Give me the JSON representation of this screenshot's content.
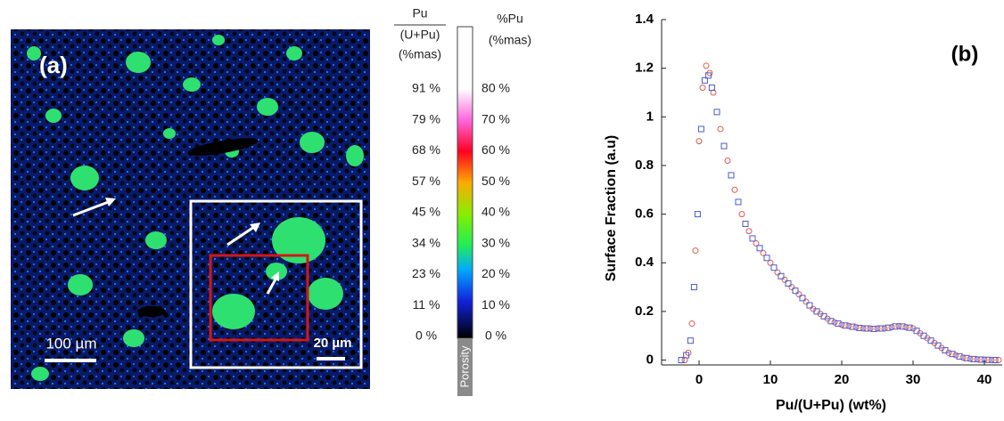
{
  "panel_a": {
    "label": "(a)",
    "scale_main": "100 µm",
    "scale_inset": "20 µm"
  },
  "colorbar": {
    "left_title": [
      "Pu",
      "(U+Pu)",
      "(%mas)"
    ],
    "right_title": [
      "%Pu",
      "(%mas)"
    ],
    "left_labels": [
      "91 %",
      "79 %",
      "68 %",
      "57 %",
      "45 %",
      "34 %",
      "23 %",
      "11 %",
      "0 %"
    ],
    "right_labels": [
      "80 %",
      "70 %",
      "60 %",
      "50 %",
      "40 %",
      "30 %",
      "20 %",
      "10 %",
      "0 %"
    ],
    "porosity": "Porosity"
  },
  "chart_data": {
    "type": "scatter",
    "label": "(b)",
    "xlabel": "Pu/(U+Pu) (wt%)",
    "ylabel": "Surface Fraction (a.u)",
    "xlim": [
      -5.25,
      42.5
    ],
    "ylim": [
      -0.02,
      1.4
    ],
    "xticks": [
      0,
      10,
      20,
      30,
      40
    ],
    "yticks": [
      0,
      0.2,
      0.4,
      0.6,
      0.8,
      1,
      1.2,
      1.4
    ],
    "series": [
      {
        "color": "#e05a4a",
        "marker": "circle",
        "x": [
          -2,
          -1.5,
          -1,
          -0.5,
          0,
          0.5,
          1,
          1.5,
          2,
          3,
          4,
          5,
          6,
          7,
          8,
          9,
          10,
          11,
          12,
          13,
          14,
          15,
          16,
          17,
          18,
          19,
          20,
          21,
          22,
          23,
          24,
          25,
          26,
          27,
          28,
          29,
          30,
          31,
          32,
          33,
          34,
          35,
          36,
          37,
          38,
          39,
          40,
          41,
          42
        ],
        "values": [
          0,
          0.03,
          0.15,
          0.45,
          0.9,
          1.12,
          1.21,
          1.18,
          1.1,
          0.95,
          0.82,
          0.7,
          0.6,
          0.53,
          0.48,
          0.44,
          0.4,
          0.36,
          0.33,
          0.3,
          0.27,
          0.24,
          0.21,
          0.19,
          0.17,
          0.155,
          0.145,
          0.14,
          0.135,
          0.13,
          0.13,
          0.13,
          0.13,
          0.135,
          0.14,
          0.135,
          0.13,
          0.11,
          0.09,
          0.07,
          0.05,
          0.03,
          0.02,
          0.01,
          0.005,
          0.003,
          0.002,
          0,
          0
        ]
      },
      {
        "color": "#4a5ad0",
        "marker": "square",
        "x": [
          -2.5,
          -1.8,
          -1.2,
          -0.7,
          -0.2,
          0.3,
          0.8,
          1.3,
          1.8,
          2.5,
          3.5,
          4.5,
          5.5,
          6.5,
          7.5,
          8.5,
          9.5,
          10.5,
          11.5,
          12.5,
          13.5,
          14.5,
          15.5,
          16.5,
          17.5,
          18.5,
          19.5,
          20.5,
          21.5,
          22.5,
          23.5,
          24.5,
          25.5,
          26.5,
          27.5,
          28.5,
          29.5,
          30.5,
          31.5,
          32.5,
          33.5,
          34.5,
          35.5,
          36.5,
          37.5,
          38.5,
          39.5,
          40.5,
          41.5
        ],
        "values": [
          0,
          0.02,
          0.08,
          0.3,
          0.6,
          0.95,
          1.15,
          1.17,
          1.12,
          1.02,
          0.88,
          0.76,
          0.65,
          0.56,
          0.5,
          0.46,
          0.42,
          0.38,
          0.345,
          0.315,
          0.285,
          0.255,
          0.225,
          0.2,
          0.18,
          0.16,
          0.15,
          0.142,
          0.137,
          0.132,
          0.13,
          0.128,
          0.13,
          0.133,
          0.138,
          0.138,
          0.133,
          0.12,
          0.1,
          0.08,
          0.06,
          0.04,
          0.025,
          0.015,
          0.008,
          0.004,
          0.002,
          0.001,
          0
        ]
      }
    ]
  }
}
